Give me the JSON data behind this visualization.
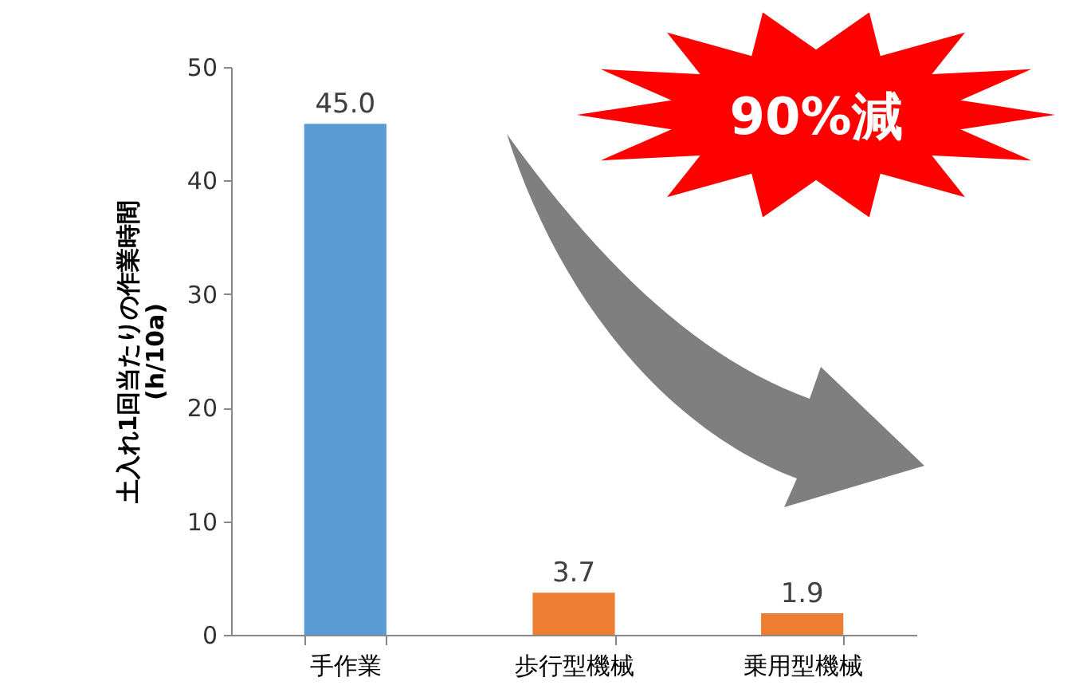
{
  "chart_data": {
    "type": "bar",
    "categories": [
      "手作業",
      "歩行型機械",
      "乗用型機械"
    ],
    "values": [
      45.0,
      3.7,
      1.9
    ],
    "colors": [
      "#5b9bd5",
      "#ed7d31",
      "#ed7d31"
    ],
    "value_labels": [
      "45.0",
      "3.7",
      "1.9"
    ],
    "ylabel": "土入れ1回当たりの作業時間\n(h/10a)",
    "ylim": [
      0,
      50
    ],
    "yticks": [
      0,
      10,
      20,
      30,
      40,
      50
    ],
    "grid": false,
    "annotations": [
      "90%減"
    ]
  }
}
